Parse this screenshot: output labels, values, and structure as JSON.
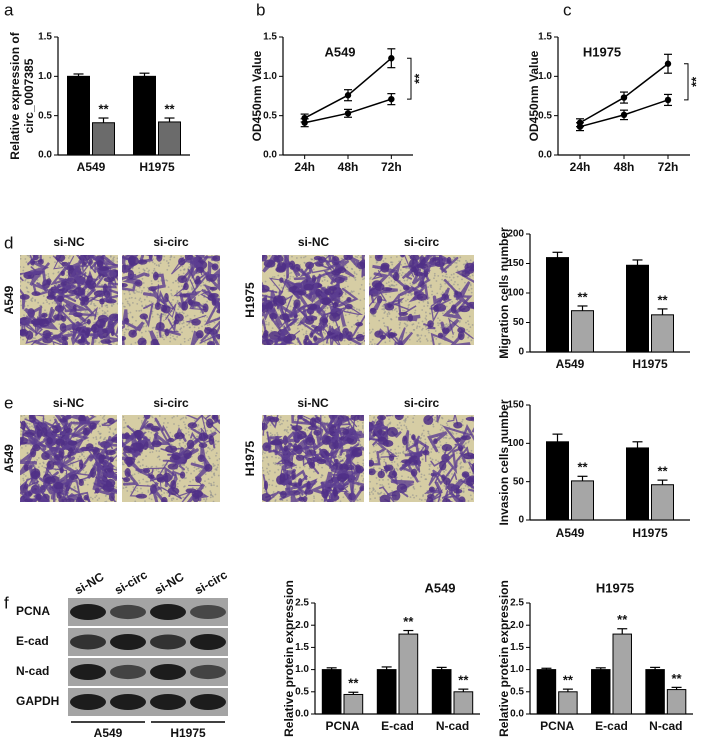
{
  "panel_labels": [
    "a",
    "b",
    "c",
    "d",
    "e",
    "f"
  ],
  "chart_data": [
    {
      "type": "bar",
      "ylabel": [
        "Relative expression of",
        "circ_0007385"
      ],
      "categories": [
        "A549",
        "H1975"
      ],
      "ylim": [
        0,
        1.5
      ],
      "yticks": [
        {
          "value": 0,
          "label": "0.0"
        },
        0.5,
        {
          "value": 1,
          "label": "1.0"
        },
        1.5
      ],
      "series": [
        {
          "color": "#000000",
          "values": [
            1.0,
            1.0
          ],
          "errors": [
            0.03,
            0.04
          ]
        },
        {
          "color": "#6b6b6b",
          "values": [
            0.41,
            0.42
          ],
          "errors": [
            0.06,
            0.05
          ],
          "significance": [
            "**",
            "**"
          ]
        }
      ]
    },
    {
      "type": "line",
      "title": "A549",
      "ylabel": "OD450nm Value",
      "categories": [
        "24h",
        "48h",
        "72h"
      ],
      "ylim": [
        0,
        1.5
      ],
      "yticks": [
        {
          "value": 0,
          "label": "0.0"
        },
        0.5,
        {
          "value": 1,
          "label": "1.0"
        },
        1.5
      ],
      "series": [
        {
          "color": "#000000",
          "values": [
            0.47,
            0.76,
            1.23
          ],
          "errors": [
            0.05,
            0.07,
            0.12
          ]
        },
        {
          "color": "#000000",
          "values": [
            0.41,
            0.53,
            0.71
          ],
          "errors": [
            0.05,
            0.05,
            0.07
          ]
        }
      ],
      "bracket_label": "**"
    },
    {
      "type": "line",
      "title": "H1975",
      "ylabel": "OD450nm Value",
      "categories": [
        "24h",
        "48h",
        "72h"
      ],
      "ylim": [
        0,
        1.5
      ],
      "yticks": [
        {
          "value": 0,
          "label": "0.0"
        },
        0.5,
        {
          "value": 1,
          "label": "1.0"
        },
        1.5
      ],
      "series": [
        {
          "color": "#000000",
          "values": [
            0.41,
            0.73,
            1.16
          ],
          "errors": [
            0.05,
            0.07,
            0.12
          ]
        },
        {
          "color": "#000000",
          "values": [
            0.36,
            0.51,
            0.7
          ],
          "errors": [
            0.05,
            0.06,
            0.07
          ]
        }
      ],
      "bracket_label": "**"
    },
    {
      "type": "bar",
      "ylabel": "Migration cells number",
      "categories": [
        "A549",
        "H1975"
      ],
      "ylim": [
        0,
        200
      ],
      "yticks": [
        0,
        50,
        100,
        150,
        200
      ],
      "series": [
        {
          "color": "#000000",
          "values": [
            160,
            147
          ],
          "errors": [
            9,
            9
          ]
        },
        {
          "color": "#a6a6a6",
          "values": [
            70,
            63
          ],
          "errors": [
            8,
            10
          ],
          "significance": [
            "**",
            "**"
          ]
        }
      ]
    },
    {
      "type": "bar",
      "ylabel": "Invasion cells number",
      "categories": [
        "A549",
        "H1975"
      ],
      "ylim": [
        0,
        150
      ],
      "yticks": [
        0,
        50,
        100,
        150
      ],
      "series": [
        {
          "color": "#000000",
          "values": [
            102,
            94
          ],
          "errors": [
            10,
            8
          ]
        },
        {
          "color": "#a6a6a6",
          "values": [
            51,
            46
          ],
          "errors": [
            6,
            6
          ],
          "significance": [
            "**",
            "**"
          ]
        }
      ]
    },
    {
      "type": "bar",
      "title": "A549",
      "ylabel": "Relative protein expression",
      "categories": [
        "PCNA",
        "E-cad",
        "N-cad"
      ],
      "ylim": [
        0,
        2.5
      ],
      "yticks": [
        {
          "value": 0,
          "label": "0.0"
        },
        0.5,
        {
          "value": 1,
          "label": "1.0"
        },
        1.5,
        {
          "value": 2,
          "label": "2.0"
        },
        2.5
      ],
      "series": [
        {
          "color": "#000000",
          "values": [
            1.0,
            1.0,
            1.0
          ],
          "errors": [
            0.04,
            0.06,
            0.05
          ]
        },
        {
          "color": "#a6a6a6",
          "values": [
            0.44,
            1.8,
            0.5
          ],
          "errors": [
            0.05,
            0.08,
            0.06
          ],
          "significance": [
            "**",
            "**",
            "**"
          ]
        }
      ]
    },
    {
      "type": "bar",
      "title": "H1975",
      "ylabel": "Relative protein expression",
      "categories": [
        "PCNA",
        "E-cad",
        "N-cad"
      ],
      "ylim": [
        0,
        2.5
      ],
      "yticks": [
        {
          "value": 0,
          "label": "0.0"
        },
        0.5,
        {
          "value": 1,
          "label": "1.0"
        },
        1.5,
        {
          "value": 2,
          "label": "2.0"
        },
        2.5
      ],
      "series": [
        {
          "color": "#000000",
          "values": [
            1.0,
            1.0,
            1.0
          ],
          "errors": [
            0.03,
            0.04,
            0.05
          ]
        },
        {
          "color": "#a6a6a6",
          "values": [
            0.5,
            1.8,
            0.55
          ],
          "errors": [
            0.06,
            0.12,
            0.05
          ],
          "significance": [
            "**",
            "**",
            "**"
          ]
        }
      ]
    }
  ],
  "micrographs": [
    {
      "row_label": "A549",
      "columns": [
        "si-NC",
        "si-circ"
      ]
    },
    {
      "row_label": "H1975",
      "columns": [
        "si-NC",
        "si-circ"
      ]
    },
    {
      "row_label": "A549",
      "columns": [
        "si-NC",
        "si-circ"
      ]
    },
    {
      "row_label": "H1975",
      "columns": [
        "si-NC",
        "si-circ"
      ]
    }
  ],
  "western_blot": {
    "lanes": [
      "si-NC",
      "si-circ",
      "si-NC",
      "si-circ"
    ],
    "rows": [
      "PCNA",
      "E-cad",
      "N-cad",
      "GAPDH"
    ],
    "groups": [
      "A549",
      "H1975"
    ]
  }
}
